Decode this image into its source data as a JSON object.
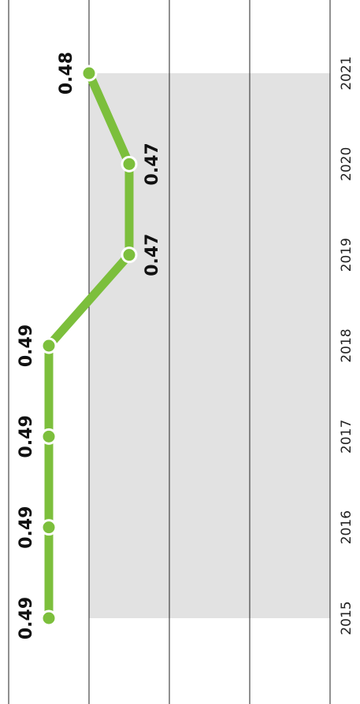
{
  "chart_data": {
    "type": "line",
    "categories": [
      "2015",
      "2016",
      "2017",
      "2018",
      "2019",
      "2020",
      "2021"
    ],
    "values": [
      0.49,
      0.49,
      0.49,
      0.49,
      0.47,
      0.47,
      0.48
    ],
    "color": "#7cbf3c",
    "ylim": [
      0.42,
      0.5
    ],
    "yticks": [
      0.42,
      0.44,
      0.46,
      0.48,
      0.5
    ],
    "grid": true
  }
}
